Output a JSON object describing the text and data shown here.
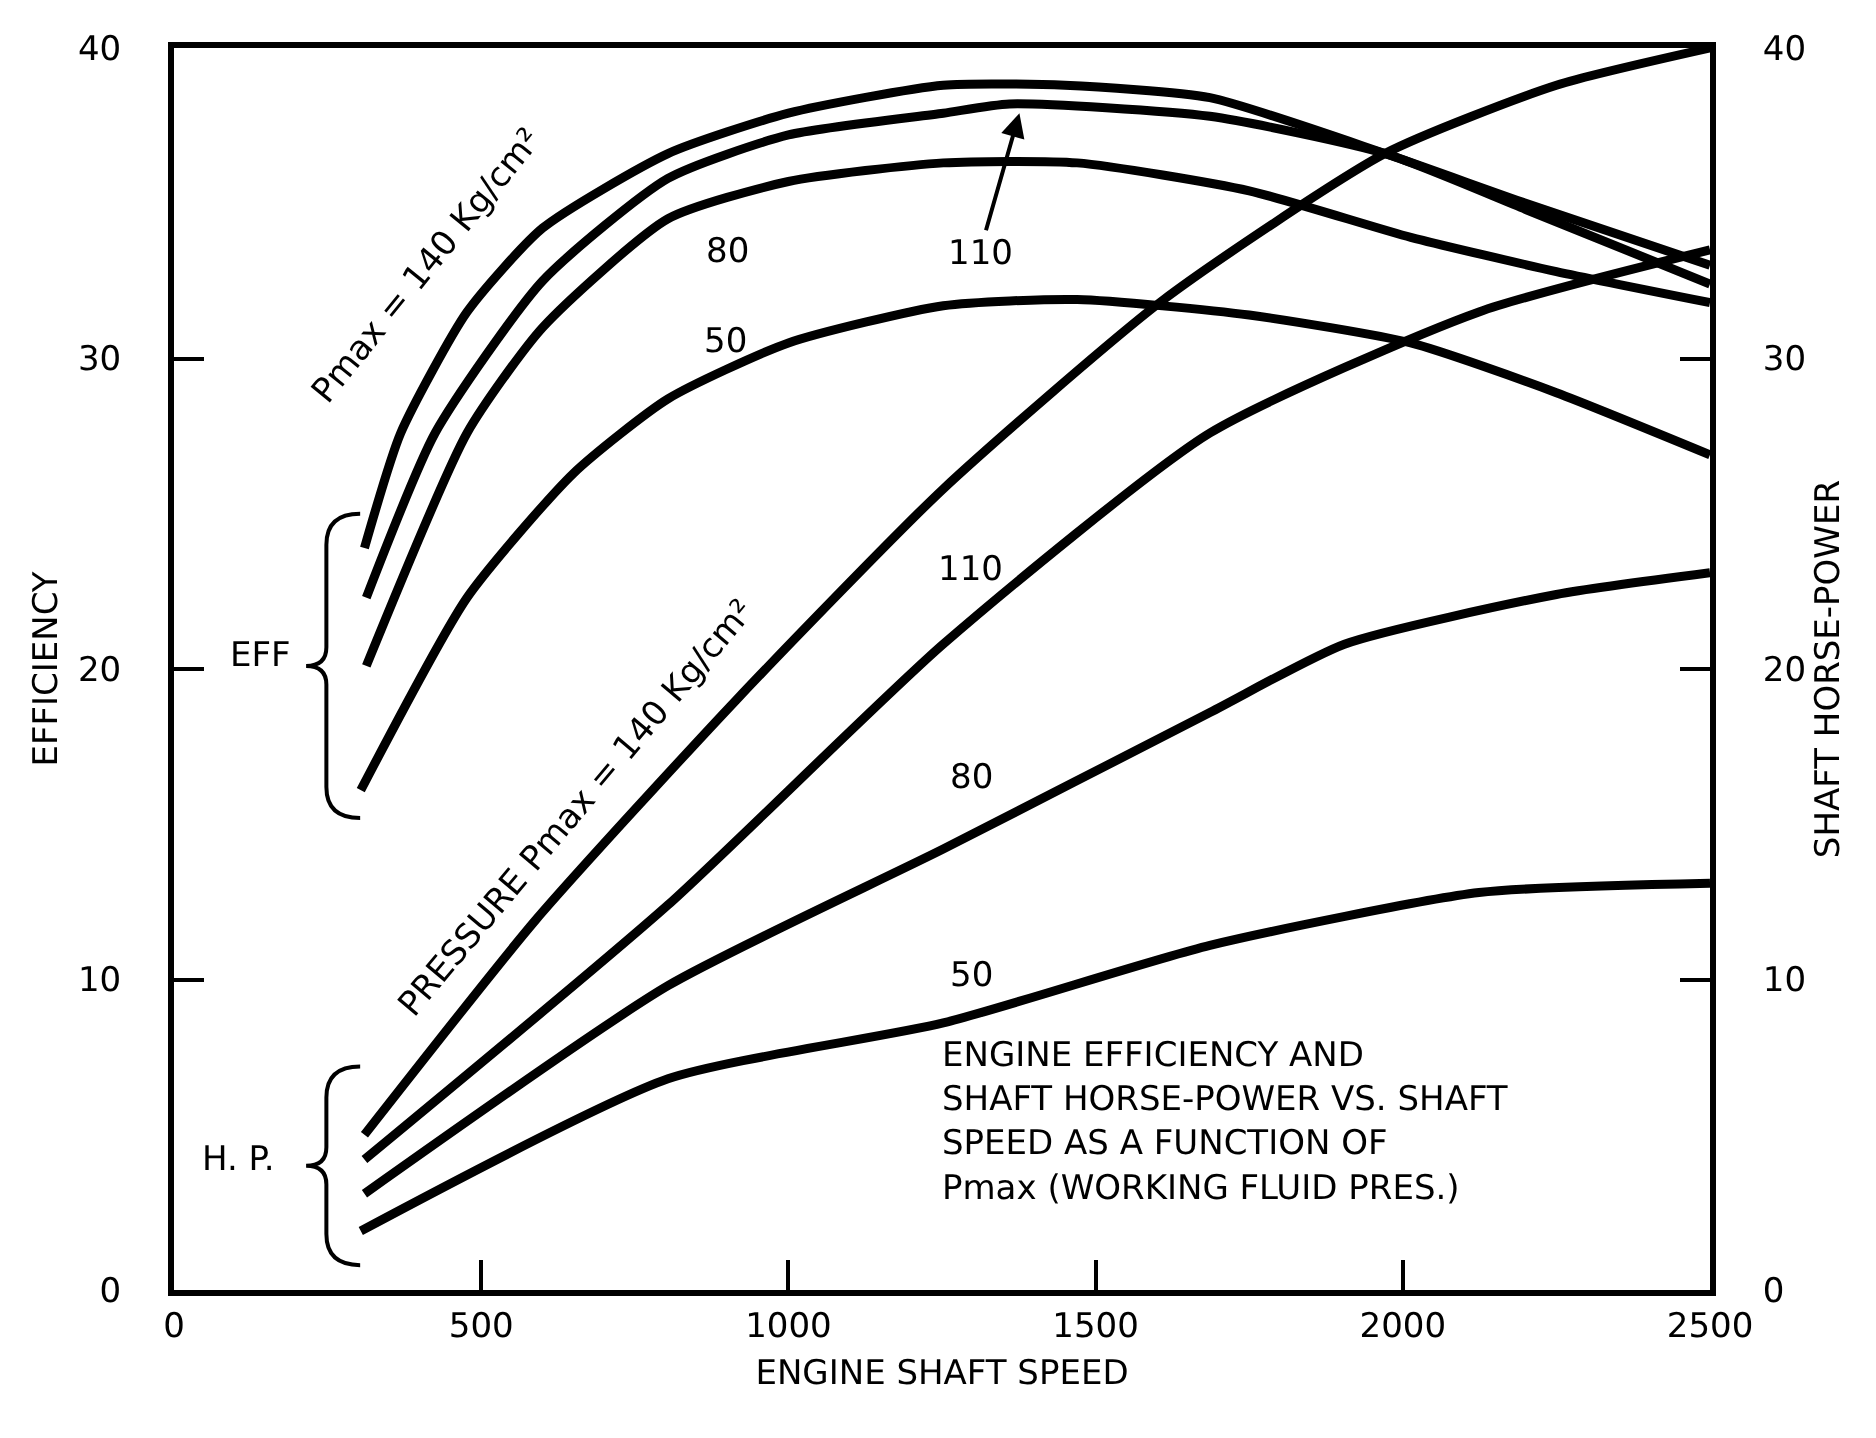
{
  "chart_data": {
    "type": "line",
    "xlabel": "ENGINE SHAFT SPEED",
    "ylabel": "EFFICIENCY",
    "y2label": "SHAFT HORSE-POWER",
    "xlim": [
      0,
      2500
    ],
    "xticks": [
      0,
      500,
      1000,
      1500,
      2000,
      2500
    ],
    "ylim": [
      0,
      40
    ],
    "yticks": [
      0,
      10,
      20,
      30,
      40
    ],
    "y2lim": [
      0,
      40
    ],
    "y2ticks": [
      0,
      10,
      20,
      30,
      40
    ],
    "marker": "none",
    "line_style": "solid",
    "series": [
      {
        "color": "#000000",
        "x": [
          310,
          369,
          477,
          600,
          804,
          1000,
          1252,
          1450,
          1686,
          1971,
          2200,
          2500
        ],
        "values": [
          23.9,
          27.6,
          31.5,
          34.2,
          36.6,
          37.9,
          38.8,
          38.8,
          38.4,
          36.6,
          35.0,
          33.0
        ]
      },
      {
        "color": "#000000",
        "x": [
          313,
          425,
          600,
          804,
          1000,
          1252,
          1360,
          1686,
          1971,
          2200,
          2500
        ],
        "values": [
          22.3,
          27.6,
          32.5,
          35.8,
          37.2,
          37.9,
          38.2,
          37.8,
          36.6,
          34.8,
          32.4
        ]
      },
      {
        "color": "#000000",
        "x": [
          313,
          477,
          600,
          804,
          1000,
          1252,
          1470,
          1750,
          2013,
          2250,
          2500
        ],
        "values": [
          20.1,
          27.6,
          31.0,
          34.5,
          35.7,
          36.3,
          36.3,
          35.4,
          33.9,
          32.8,
          31.8
        ]
      },
      {
        "color": "#000000",
        "x": [
          304,
          477,
          650,
          804,
          1000,
          1252,
          1470,
          1750,
          2013,
          2250,
          2500
        ],
        "values": [
          16.1,
          22.3,
          26.3,
          28.7,
          30.5,
          31.7,
          31.9,
          31.4,
          30.5,
          28.9,
          26.9
        ]
      },
      {
        "axis": "y2",
        "color": "#000000",
        "x": [
          310,
          588,
          915,
          1252,
          1611,
          1971,
          2250,
          2500
        ],
        "values": [
          5.0,
          11.9,
          19.0,
          25.8,
          31.9,
          36.6,
          38.8,
          40.0
        ]
      },
      {
        "axis": "y2",
        "color": "#000000",
        "x": [
          310,
          804,
          1252,
          1686,
          2124,
          2500
        ],
        "values": [
          4.2,
          12.4,
          20.8,
          27.6,
          31.5,
          33.5
        ]
      },
      {
        "axis": "y2",
        "color": "#000000",
        "x": [
          310,
          804,
          1252,
          1686,
          1905,
          2250,
          2500
        ],
        "values": [
          3.1,
          9.8,
          14.2,
          18.6,
          20.8,
          22.4,
          23.1
        ]
      },
      {
        "axis": "y2",
        "color": "#000000",
        "x": [
          304,
          804,
          1252,
          1686,
          2124,
          2500
        ],
        "values": [
          1.9,
          6.8,
          8.6,
          11.1,
          12.8,
          13.1
        ]
      }
    ],
    "annotations": [
      "Pmax = 140 Kg/cm²",
      {
        "text": "110",
        "x": 1376,
        "y": 37.9
      },
      "80",
      "50",
      "PRESSURE Pmax = 140 Kg/cm²",
      "110",
      "80",
      "50",
      "EFF",
      "H. P.",
      "ENGINE EFFICIENCY AND\nSHAFT HORSE-POWER VS. SHAFT\nSPEED AS A FUNCTION OF\nPmax (WORKING FLUID PRES.)"
    ]
  }
}
